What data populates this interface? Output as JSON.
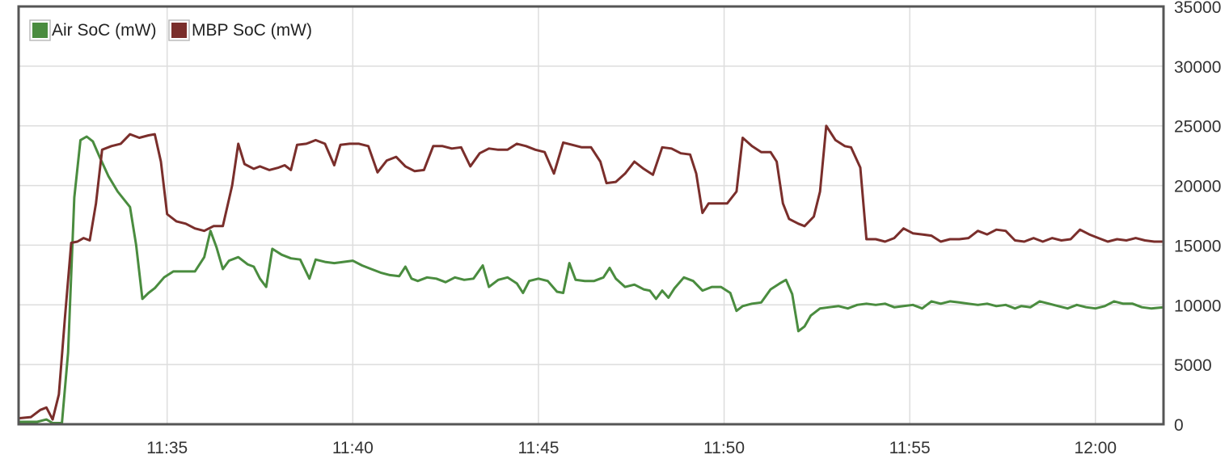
{
  "chart_data": {
    "type": "line",
    "title": "",
    "xlabel": "",
    "ylabel": "",
    "x_ticks": [
      "11:35",
      "11:40",
      "11:45",
      "11:50",
      "11:55",
      "12:00"
    ],
    "y_ticks": [
      "0",
      "5000",
      "10000",
      "15000",
      "20000",
      "25000",
      "30000",
      "35000"
    ],
    "xlim": [
      "11:31:00",
      "12:01:50"
    ],
    "ylim": [
      0,
      35000
    ],
    "grid": true,
    "legend_position": "top-left",
    "series": [
      {
        "name": "Air SoC (mW)",
        "color": "#4a8c3f",
        "points": [
          [
            "11:31:00",
            200
          ],
          [
            "11:31:30",
            200
          ],
          [
            "11:31:45",
            400
          ],
          [
            "11:31:55",
            100
          ],
          [
            "11:32:10",
            100
          ],
          [
            "11:32:20",
            6000
          ],
          [
            "11:32:30",
            19000
          ],
          [
            "11:32:40",
            23800
          ],
          [
            "11:32:50",
            24100
          ],
          [
            "11:33:00",
            23700
          ],
          [
            "11:33:10",
            22500
          ],
          [
            "11:33:25",
            20800
          ],
          [
            "11:33:40",
            19500
          ],
          [
            "11:34:00",
            18200
          ],
          [
            "11:34:10",
            15000
          ],
          [
            "11:34:20",
            10500
          ],
          [
            "11:34:30",
            11000
          ],
          [
            "11:34:40",
            11400
          ],
          [
            "11:34:55",
            12300
          ],
          [
            "11:35:10",
            12800
          ],
          [
            "11:35:30",
            12800
          ],
          [
            "11:35:45",
            12800
          ],
          [
            "11:36:00",
            14000
          ],
          [
            "11:36:10",
            16200
          ],
          [
            "11:36:20",
            14800
          ],
          [
            "11:36:30",
            13000
          ],
          [
            "11:36:40",
            13700
          ],
          [
            "11:36:55",
            14000
          ],
          [
            "11:37:10",
            13400
          ],
          [
            "11:37:20",
            13200
          ],
          [
            "11:37:30",
            12200
          ],
          [
            "11:37:40",
            11500
          ],
          [
            "11:37:50",
            14700
          ],
          [
            "11:38:05",
            14200
          ],
          [
            "11:38:20",
            13900
          ],
          [
            "11:38:35",
            13800
          ],
          [
            "11:38:50",
            12200
          ],
          [
            "11:39:00",
            13800
          ],
          [
            "11:39:15",
            13600
          ],
          [
            "11:39:30",
            13500
          ],
          [
            "11:39:45",
            13600
          ],
          [
            "11:40:00",
            13700
          ],
          [
            "11:40:15",
            13300
          ],
          [
            "11:40:30",
            13000
          ],
          [
            "11:40:45",
            12700
          ],
          [
            "11:41:00",
            12500
          ],
          [
            "11:41:15",
            12400
          ],
          [
            "11:41:25",
            13200
          ],
          [
            "11:41:35",
            12200
          ],
          [
            "11:41:45",
            12000
          ],
          [
            "11:42:00",
            12300
          ],
          [
            "11:42:15",
            12200
          ],
          [
            "11:42:30",
            11900
          ],
          [
            "11:42:45",
            12300
          ],
          [
            "11:43:00",
            12100
          ],
          [
            "11:43:15",
            12200
          ],
          [
            "11:43:30",
            13300
          ],
          [
            "11:43:40",
            11500
          ],
          [
            "11:43:55",
            12100
          ],
          [
            "11:44:10",
            12300
          ],
          [
            "11:44:25",
            11800
          ],
          [
            "11:44:35",
            11000
          ],
          [
            "11:44:45",
            12000
          ],
          [
            "11:45:00",
            12200
          ],
          [
            "11:45:15",
            12000
          ],
          [
            "11:45:30",
            11100
          ],
          [
            "11:45:40",
            11000
          ],
          [
            "11:45:50",
            13500
          ],
          [
            "11:46:00",
            12100
          ],
          [
            "11:46:15",
            12000
          ],
          [
            "11:46:30",
            12000
          ],
          [
            "11:46:45",
            12300
          ],
          [
            "11:46:55",
            13100
          ],
          [
            "11:47:05",
            12200
          ],
          [
            "11:47:20",
            11500
          ],
          [
            "11:47:35",
            11700
          ],
          [
            "11:47:50",
            11300
          ],
          [
            "11:48:00",
            11200
          ],
          [
            "11:48:10",
            10500
          ],
          [
            "11:48:20",
            11200
          ],
          [
            "11:48:30",
            10600
          ],
          [
            "11:48:40",
            11400
          ],
          [
            "11:48:55",
            12300
          ],
          [
            "11:49:10",
            12000
          ],
          [
            "11:49:25",
            11200
          ],
          [
            "11:49:40",
            11500
          ],
          [
            "11:49:55",
            11500
          ],
          [
            "11:50:10",
            11000
          ],
          [
            "11:50:20",
            9500
          ],
          [
            "11:50:30",
            9900
          ],
          [
            "11:50:45",
            10100
          ],
          [
            "11:51:00",
            10200
          ],
          [
            "11:51:15",
            11300
          ],
          [
            "11:51:30",
            11800
          ],
          [
            "11:51:40",
            12100
          ],
          [
            "11:51:50",
            10900
          ],
          [
            "11:52:00",
            7800
          ],
          [
            "11:52:10",
            8200
          ],
          [
            "11:52:20",
            9100
          ],
          [
            "11:52:35",
            9700
          ],
          [
            "11:52:50",
            9800
          ],
          [
            "11:53:05",
            9900
          ],
          [
            "11:53:20",
            9700
          ],
          [
            "11:53:35",
            10000
          ],
          [
            "11:53:50",
            10100
          ],
          [
            "11:54:05",
            10000
          ],
          [
            "11:54:20",
            10100
          ],
          [
            "11:54:35",
            9800
          ],
          [
            "11:54:50",
            9900
          ],
          [
            "11:55:05",
            10000
          ],
          [
            "11:55:20",
            9700
          ],
          [
            "11:55:35",
            10300
          ],
          [
            "11:55:50",
            10100
          ],
          [
            "11:56:05",
            10300
          ],
          [
            "11:56:20",
            10200
          ],
          [
            "11:56:35",
            10100
          ],
          [
            "11:56:50",
            10000
          ],
          [
            "11:57:05",
            10100
          ],
          [
            "11:57:20",
            9900
          ],
          [
            "11:57:35",
            10000
          ],
          [
            "11:57:50",
            9700
          ],
          [
            "11:58:00",
            9900
          ],
          [
            "11:58:15",
            9800
          ],
          [
            "11:58:30",
            10300
          ],
          [
            "11:58:45",
            10100
          ],
          [
            "11:59:00",
            9900
          ],
          [
            "11:59:15",
            9700
          ],
          [
            "11:59:30",
            10000
          ],
          [
            "11:59:45",
            9800
          ],
          [
            "12:00:00",
            9700
          ],
          [
            "12:00:15",
            9900
          ],
          [
            "12:00:30",
            10300
          ],
          [
            "12:00:45",
            10100
          ],
          [
            "12:01:00",
            10100
          ],
          [
            "12:01:15",
            9800
          ],
          [
            "12:01:30",
            9700
          ],
          [
            "12:01:50",
            9800
          ]
        ]
      },
      {
        "name": "MBP SoC (mW)",
        "color": "#7a2e2b",
        "points": [
          [
            "11:31:00",
            500
          ],
          [
            "11:31:20",
            600
          ],
          [
            "11:31:35",
            1200
          ],
          [
            "11:31:45",
            1400
          ],
          [
            "11:31:55",
            400
          ],
          [
            "11:32:05",
            2500
          ],
          [
            "11:32:15",
            9000
          ],
          [
            "11:32:25",
            15200
          ],
          [
            "11:32:35",
            15300
          ],
          [
            "11:32:45",
            15600
          ],
          [
            "11:32:55",
            15400
          ],
          [
            "11:33:05",
            18500
          ],
          [
            "11:33:15",
            23000
          ],
          [
            "11:33:30",
            23300
          ],
          [
            "11:33:45",
            23500
          ],
          [
            "11:34:00",
            24300
          ],
          [
            "11:34:15",
            24000
          ],
          [
            "11:34:30",
            24200
          ],
          [
            "11:34:40",
            24300
          ],
          [
            "11:34:50",
            22000
          ],
          [
            "11:35:00",
            17600
          ],
          [
            "11:35:15",
            17000
          ],
          [
            "11:35:30",
            16800
          ],
          [
            "11:35:45",
            16400
          ],
          [
            "11:36:00",
            16200
          ],
          [
            "11:36:15",
            16600
          ],
          [
            "11:36:30",
            16600
          ],
          [
            "11:36:45",
            20000
          ],
          [
            "11:36:55",
            23500
          ],
          [
            "11:37:05",
            21800
          ],
          [
            "11:37:20",
            21400
          ],
          [
            "11:37:30",
            21600
          ],
          [
            "11:37:45",
            21300
          ],
          [
            "11:38:00",
            21500
          ],
          [
            "11:38:10",
            21700
          ],
          [
            "11:38:20",
            21300
          ],
          [
            "11:38:30",
            23400
          ],
          [
            "11:38:45",
            23500
          ],
          [
            "11:39:00",
            23800
          ],
          [
            "11:39:15",
            23500
          ],
          [
            "11:39:30",
            21700
          ],
          [
            "11:39:40",
            23400
          ],
          [
            "11:39:55",
            23500
          ],
          [
            "11:40:10",
            23500
          ],
          [
            "11:40:25",
            23300
          ],
          [
            "11:40:40",
            21100
          ],
          [
            "11:40:55",
            22100
          ],
          [
            "11:41:10",
            22400
          ],
          [
            "11:41:25",
            21600
          ],
          [
            "11:41:40",
            21200
          ],
          [
            "11:41:55",
            21300
          ],
          [
            "11:42:10",
            23300
          ],
          [
            "11:42:25",
            23300
          ],
          [
            "11:42:40",
            23100
          ],
          [
            "11:42:55",
            23200
          ],
          [
            "11:43:10",
            21600
          ],
          [
            "11:43:25",
            22700
          ],
          [
            "11:43:40",
            23100
          ],
          [
            "11:43:55",
            23000
          ],
          [
            "11:44:10",
            23000
          ],
          [
            "11:44:25",
            23500
          ],
          [
            "11:44:40",
            23300
          ],
          [
            "11:44:55",
            23000
          ],
          [
            "11:45:10",
            22800
          ],
          [
            "11:45:25",
            21000
          ],
          [
            "11:45:40",
            23600
          ],
          [
            "11:45:55",
            23400
          ],
          [
            "11:46:10",
            23200
          ],
          [
            "11:46:25",
            23200
          ],
          [
            "11:46:40",
            22000
          ],
          [
            "11:46:50",
            20200
          ],
          [
            "11:47:05",
            20300
          ],
          [
            "11:47:20",
            21000
          ],
          [
            "11:47:35",
            22000
          ],
          [
            "11:47:50",
            21400
          ],
          [
            "11:48:05",
            20900
          ],
          [
            "11:48:20",
            23200
          ],
          [
            "11:48:35",
            23100
          ],
          [
            "11:48:50",
            22700
          ],
          [
            "11:49:05",
            22600
          ],
          [
            "11:49:15",
            21000
          ],
          [
            "11:49:25",
            17700
          ],
          [
            "11:49:35",
            18500
          ],
          [
            "11:49:50",
            18500
          ],
          [
            "11:50:05",
            18500
          ],
          [
            "11:50:20",
            19500
          ],
          [
            "11:50:30",
            24000
          ],
          [
            "11:50:45",
            23300
          ],
          [
            "11:51:00",
            22800
          ],
          [
            "11:51:15",
            22800
          ],
          [
            "11:51:25",
            22000
          ],
          [
            "11:51:35",
            18500
          ],
          [
            "11:51:45",
            17200
          ],
          [
            "11:52:00",
            16800
          ],
          [
            "11:52:10",
            16600
          ],
          [
            "11:52:25",
            17400
          ],
          [
            "11:52:35",
            19500
          ],
          [
            "11:52:45",
            25000
          ],
          [
            "11:53:00",
            23800
          ],
          [
            "11:53:15",
            23300
          ],
          [
            "11:53:25",
            23200
          ],
          [
            "11:53:40",
            21500
          ],
          [
            "11:53:50",
            15500
          ],
          [
            "11:54:05",
            15500
          ],
          [
            "11:54:20",
            15300
          ],
          [
            "11:54:35",
            15600
          ],
          [
            "11:54:50",
            16400
          ],
          [
            "11:55:05",
            16000
          ],
          [
            "11:55:20",
            15900
          ],
          [
            "11:55:35",
            15800
          ],
          [
            "11:55:50",
            15300
          ],
          [
            "11:56:05",
            15500
          ],
          [
            "11:56:20",
            15500
          ],
          [
            "11:56:35",
            15600
          ],
          [
            "11:56:50",
            16200
          ],
          [
            "11:57:05",
            15900
          ],
          [
            "11:57:20",
            16300
          ],
          [
            "11:57:35",
            16200
          ],
          [
            "11:57:50",
            15400
          ],
          [
            "11:58:05",
            15300
          ],
          [
            "11:58:20",
            15600
          ],
          [
            "11:58:35",
            15300
          ],
          [
            "11:58:50",
            15600
          ],
          [
            "11:59:05",
            15400
          ],
          [
            "11:59:20",
            15500
          ],
          [
            "11:59:35",
            16300
          ],
          [
            "11:59:50",
            15900
          ],
          [
            "12:00:05",
            15600
          ],
          [
            "12:00:20",
            15300
          ],
          [
            "12:00:35",
            15500
          ],
          [
            "12:00:50",
            15400
          ],
          [
            "12:01:05",
            15600
          ],
          [
            "12:01:20",
            15400
          ],
          [
            "12:01:35",
            15300
          ],
          [
            "12:01:50",
            15300
          ]
        ]
      }
    ]
  }
}
